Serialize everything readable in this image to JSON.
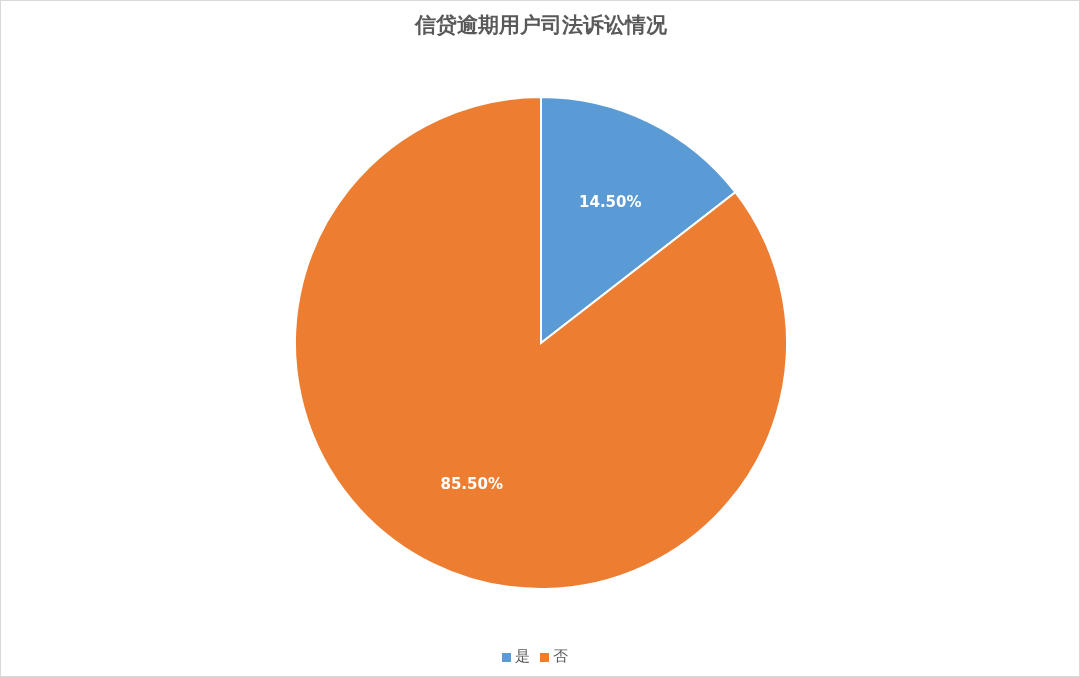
{
  "chart_data": {
    "type": "pie",
    "title": "信贷逾期用户司法诉讼情况",
    "categories": [
      "是",
      "否"
    ],
    "values": [
      14.5,
      85.5
    ],
    "colors": [
      "#5b9bd5",
      "#ed7d31"
    ],
    "value_labels": [
      "14.50%",
      "85.50%"
    ],
    "legend": "bottom"
  }
}
